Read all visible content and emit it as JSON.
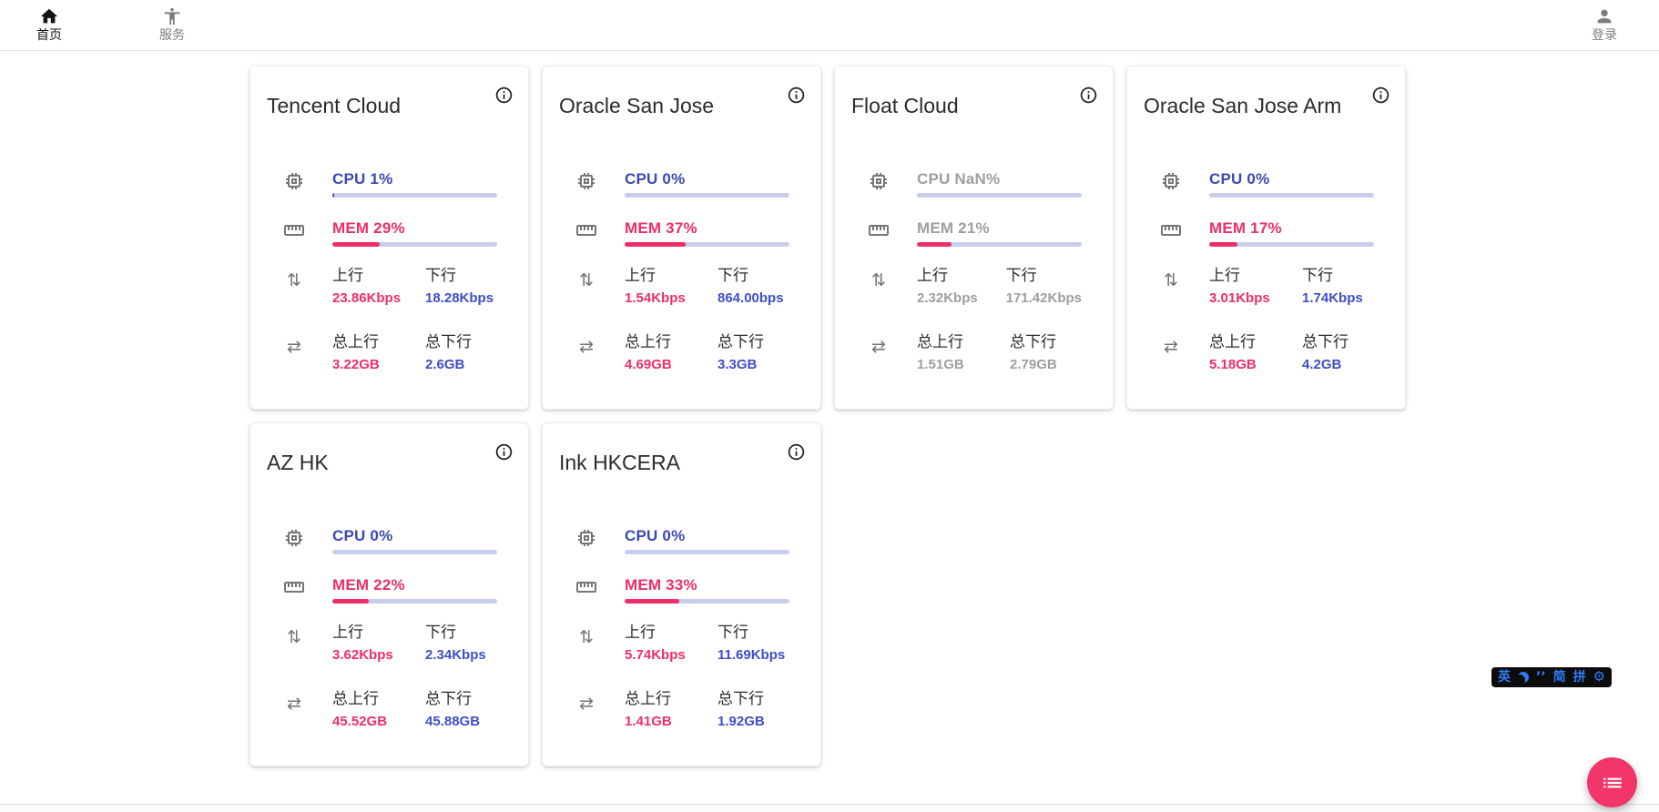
{
  "nav": {
    "items": [
      {
        "id": "home",
        "label": "首页",
        "active": true
      },
      {
        "id": "services",
        "label": "服务",
        "active": false
      }
    ],
    "login": {
      "label": "登录"
    }
  },
  "labels": {
    "up": "上行",
    "down": "下行",
    "total_up": "总上行",
    "total_down": "总下行"
  },
  "cards": [
    {
      "title": "Tencent Cloud",
      "cpu_label": "CPU 1%",
      "cpu_pct": 1,
      "mem_label": "MEM 29%",
      "mem_pct": 29,
      "up": "23.86Kbps",
      "down": "18.28Kbps",
      "total_up": "3.22GB",
      "total_down": "2.6GB",
      "offline": false
    },
    {
      "title": "Oracle San Jose",
      "cpu_label": "CPU 0%",
      "cpu_pct": 0,
      "mem_label": "MEM 37%",
      "mem_pct": 37,
      "up": "1.54Kbps",
      "down": "864.00bps",
      "total_up": "4.69GB",
      "total_down": "3.3GB",
      "offline": false
    },
    {
      "title": "Float Cloud",
      "cpu_label": "CPU NaN%",
      "cpu_pct": null,
      "mem_label": "MEM 21%",
      "mem_pct": 21,
      "up": "2.32Kbps",
      "down": "171.42Kbps",
      "total_up": "1.51GB",
      "total_down": "2.79GB",
      "offline": true
    },
    {
      "title": "Oracle San Jose Arm",
      "cpu_label": "CPU 0%",
      "cpu_pct": 0,
      "mem_label": "MEM 17%",
      "mem_pct": 17,
      "up": "3.01Kbps",
      "down": "1.74Kbps",
      "total_up": "5.18GB",
      "total_down": "4.2GB",
      "offline": false
    },
    {
      "title": "AZ HK",
      "cpu_label": "CPU 0%",
      "cpu_pct": 0,
      "mem_label": "MEM 22%",
      "mem_pct": 22,
      "up": "3.62Kbps",
      "down": "2.34Kbps",
      "total_up": "45.52GB",
      "total_down": "45.88GB",
      "offline": false
    },
    {
      "title": "Ink HKCERA",
      "cpu_label": "CPU 0%",
      "cpu_pct": 0,
      "mem_label": "MEM 33%",
      "mem_pct": 33,
      "up": "5.74Kbps",
      "down": "11.69Kbps",
      "total_up": "1.41GB",
      "total_down": "1.92GB",
      "offline": false
    }
  ],
  "ime": {
    "items": [
      {
        "type": "text",
        "text": "英",
        "name": "ime-lang-indicator"
      },
      {
        "type": "moon-icon",
        "name": "ime-fullwidth-moon-icon"
      },
      {
        "type": "text",
        "text": "’’",
        "name": "ime-punctuation-indicator"
      },
      {
        "type": "text",
        "text": "简",
        "name": "ime-simplified-indicator"
      },
      {
        "type": "text",
        "text": "拼",
        "name": "ime-pinyin-indicator"
      },
      {
        "type": "gear-icon",
        "name": "ime-settings-gear-icon"
      }
    ]
  },
  "colors": {
    "pink": "#ee2e68",
    "blue": "#3e4ec8",
    "blue_dark": "#3c49b3",
    "track": "#c9cdec",
    "gray": "#9e9e9e",
    "fab": "#f2356a",
    "ime_blue": "#2e7bf6"
  }
}
